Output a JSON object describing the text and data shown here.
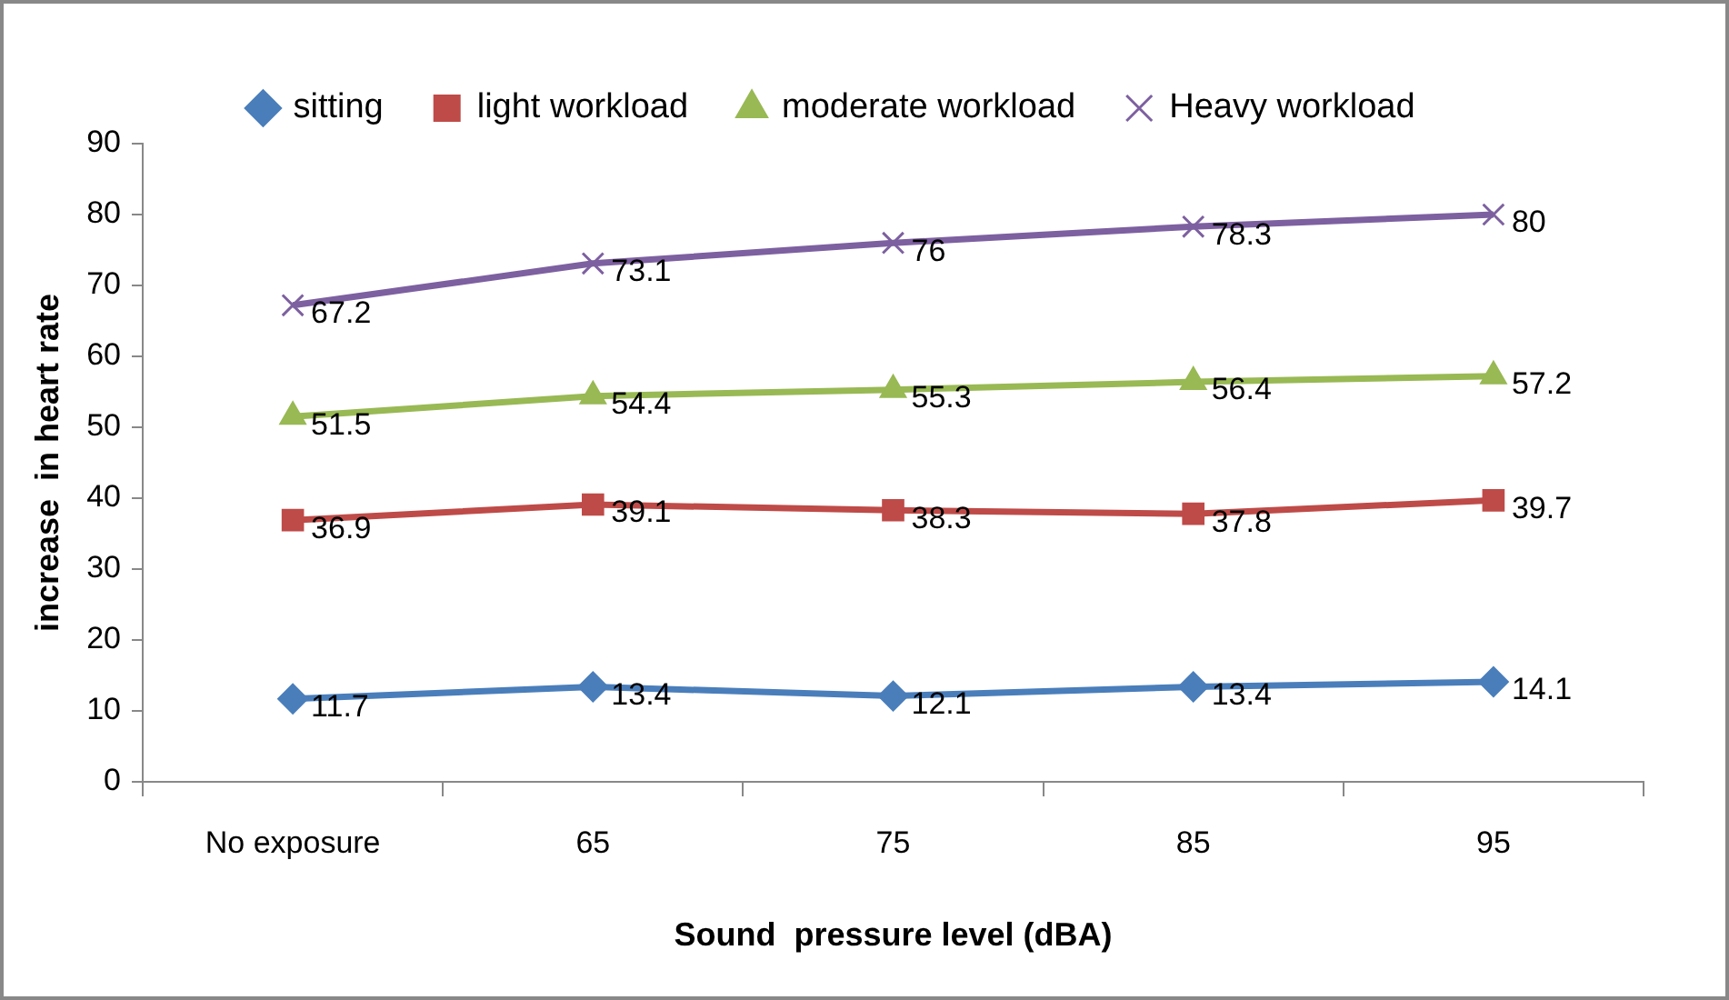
{
  "chart_data": {
    "type": "line",
    "xlabel": "Sound  pressure level (dBA)",
    "ylabel": "increase  in heart rate",
    "categories": [
      "No exposure",
      "65",
      "75",
      "85",
      "95"
    ],
    "series": [
      {
        "name": "sitting",
        "color": "#4a7ebb",
        "marker": "diamond",
        "values": [
          11.7,
          13.4,
          12.1,
          13.4,
          14.1
        ]
      },
      {
        "name": "light workload",
        "color": "#be4b48",
        "marker": "square",
        "values": [
          36.9,
          39.1,
          38.3,
          37.8,
          39.7
        ]
      },
      {
        "name": "moderate workload",
        "color": "#98b954",
        "marker": "triangle",
        "values": [
          51.5,
          54.4,
          55.3,
          56.4,
          57.2
        ]
      },
      {
        "name": "Heavy workload",
        "color": "#7d60a0",
        "marker": "cross",
        "values": [
          67.2,
          73.1,
          76,
          78.3,
          80
        ]
      }
    ],
    "ylim": [
      0,
      90
    ],
    "yticks": [
      0,
      10,
      20,
      30,
      40,
      50,
      60,
      70,
      80,
      90
    ],
    "grid": false,
    "legend": "top",
    "data_labels": true,
    "line_style": "solid"
  }
}
